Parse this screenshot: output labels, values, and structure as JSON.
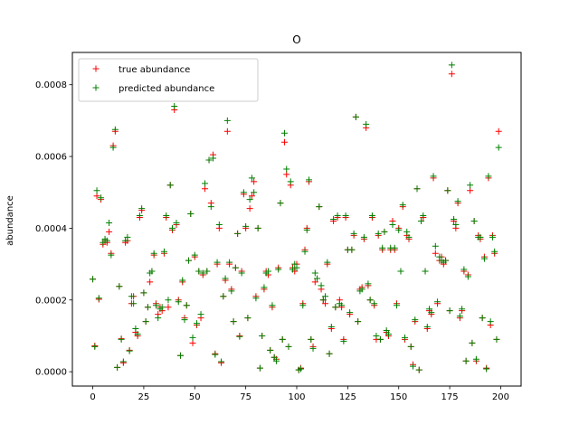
{
  "chart_data": {
    "type": "scatter",
    "title": "O",
    "xlabel": "",
    "ylabel": "abundance",
    "xlim": [
      -10,
      210
    ],
    "ylim": [
      -4e-05,
      0.00089
    ],
    "xticks": [
      0,
      25,
      50,
      75,
      100,
      125,
      150,
      175,
      200
    ],
    "xtick_labels": [
      "0",
      "25",
      "50",
      "75",
      "100",
      "125",
      "150",
      "175",
      "200"
    ],
    "yticks": [
      0.0,
      0.0002,
      0.0004,
      0.0006,
      0.0008
    ],
    "ytick_labels": [
      "0.0000",
      "0.0002",
      "0.0004",
      "0.0006",
      "0.0008"
    ],
    "grid": false,
    "legend_position": "top-left",
    "marker": "+",
    "series": [
      {
        "name": "true abundance",
        "color": "#ff0000",
        "x": [
          0,
          1,
          2,
          3,
          4,
          5,
          6,
          7,
          8,
          9,
          10,
          11,
          12,
          13,
          14,
          15,
          16,
          17,
          18,
          19,
          20,
          21,
          22,
          23,
          24,
          25,
          26,
          27,
          28,
          29,
          30,
          31,
          32,
          33,
          34,
          35,
          36,
          37,
          38,
          39,
          40,
          41,
          42,
          43,
          44,
          45,
          46,
          47,
          48,
          49,
          50,
          51,
          52,
          53,
          54,
          55,
          56,
          57,
          58,
          59,
          60,
          61,
          62,
          63,
          64,
          65,
          66,
          67,
          68,
          69,
          70,
          71,
          72,
          73,
          74,
          75,
          76,
          77,
          78,
          79,
          80,
          81,
          82,
          83,
          84,
          85,
          86,
          87,
          88,
          89,
          90,
          91,
          92,
          93,
          94,
          95,
          96,
          97,
          98,
          99,
          100,
          101,
          102,
          103,
          104,
          105,
          106,
          107,
          108,
          109,
          110,
          111,
          112,
          113,
          114,
          115,
          116,
          117,
          118,
          119,
          120,
          121,
          122,
          123,
          124,
          125,
          126,
          127,
          128,
          129,
          130,
          131,
          132,
          133,
          134,
          135,
          136,
          137,
          138,
          139,
          140,
          141,
          142,
          143,
          144,
          145,
          146,
          147,
          148,
          149,
          150,
          151,
          152,
          153,
          154,
          155,
          156,
          157,
          158,
          159,
          160,
          161,
          162,
          163,
          164,
          165,
          166,
          167,
          168,
          169,
          170,
          171,
          172,
          173,
          174,
          175,
          176,
          177,
          178,
          179,
          180,
          181,
          182,
          183,
          184,
          185,
          186,
          187,
          188,
          189,
          190,
          191,
          192,
          193,
          194,
          195,
          196,
          197,
          198,
          199
        ],
        "y": [
          0.000258,
          7.2e-05,
          0.00049,
          0.000202,
          0.00048,
          0.000355,
          0.000365,
          0.00036,
          0.00039,
          0.00033,
          0.00063,
          0.00067,
          1.2e-05,
          0.000238,
          9.2e-05,
          2.5e-05,
          0.00036,
          0.000365,
          6e-05,
          0.00019,
          0.00021,
          0.00011,
          0.0001,
          0.00043,
          0.00045,
          0.00022,
          0.00014,
          0.00018,
          0.00025,
          0.00028,
          0.000325,
          0.00019,
          0.00016,
          0.00018,
          0.00017,
          0.00033,
          0.00043,
          0.00018,
          0.00052,
          0.000395,
          0.00073,
          0.00041,
          0.0002,
          4.5e-05,
          0.00025,
          0.00015,
          0.000185,
          0.00031,
          0.00044,
          8e-05,
          0.00032,
          0.00013,
          0.00028,
          0.00015,
          0.00027,
          0.00051,
          0.00028,
          0.00059,
          0.00047,
          0.000605,
          5e-05,
          0.0003,
          0.0004,
          2.5e-05,
          0.00021,
          0.000255,
          0.00067,
          0.0003,
          0.00023,
          0.00014,
          0.00029,
          0.000385,
          0.0001,
          0.00028,
          0.000495,
          0.0004,
          0.00015,
          0.000455,
          0.00049,
          0.00053,
          0.00021,
          0.0004,
          1e-05,
          0.0001,
          0.00023,
          0.00028,
          0.00027,
          6e-05,
          0.00018,
          4e-05,
          3.5e-05,
          0.00029,
          0.00047,
          9e-05,
          0.00064,
          0.00055,
          7e-05,
          0.00052,
          0.00029,
          0.00028,
          0.0003,
          5e-06,
          1e-05,
          0.00019,
          0.00034,
          0.0004,
          0.00053,
          9e-05,
          7e-05,
          0.00025,
          0.00026,
          0.00046,
          0.00023,
          0.0002,
          0.00019,
          0.0003,
          5e-05,
          0.00012,
          0.00042,
          0.00018,
          0.00043,
          0.0002,
          0.00018,
          9e-05,
          0.00043,
          0.00034,
          0.00016,
          0.00034,
          0.00038,
          0.00071,
          0.00014,
          0.00023,
          0.000235,
          0.00037,
          0.00068,
          0.00024,
          0.0002,
          0.00043,
          0.000185,
          9e-05,
          0.00038,
          9e-05,
          0.00034,
          0.00039,
          0.00011,
          0.0001,
          0.00034,
          0.00042,
          0.00034,
          0.00019,
          0.0004,
          0.00028,
          0.00046,
          9e-05,
          0.00038,
          0.00037,
          7e-05,
          2e-05,
          0.00014,
          0.00051,
          5e-06,
          0.00042,
          0.00043,
          0.00028,
          0.00012,
          0.00017,
          0.00016,
          0.00054,
          0.00033,
          0.00019,
          0.00031,
          0.00032,
          0.0003,
          0.00031,
          0.000505,
          0.00017,
          0.00083,
          0.00042,
          0.0004,
          0.00047,
          0.00015,
          0.00017,
          0.00028,
          3e-05,
          0.00027,
          0.000505,
          8e-05,
          0.00042,
          3e-05,
          0.00038,
          0.00037,
          0.00015,
          0.00032,
          1e-05,
          0.00054,
          0.00013,
          0.00038,
          0.00033,
          9e-05,
          0.00067
        ]
      },
      {
        "name": "predicted abundance",
        "color": "#008000",
        "x": [
          0,
          1,
          2,
          3,
          4,
          5,
          6,
          7,
          8,
          9,
          10,
          11,
          12,
          13,
          14,
          15,
          16,
          17,
          18,
          19,
          20,
          21,
          22,
          23,
          24,
          25,
          26,
          27,
          28,
          29,
          30,
          31,
          32,
          33,
          34,
          35,
          36,
          37,
          38,
          39,
          40,
          41,
          42,
          43,
          44,
          45,
          46,
          47,
          48,
          49,
          50,
          51,
          52,
          53,
          54,
          55,
          56,
          57,
          58,
          59,
          60,
          61,
          62,
          63,
          64,
          65,
          66,
          67,
          68,
          69,
          70,
          71,
          72,
          73,
          74,
          75,
          76,
          77,
          78,
          79,
          80,
          81,
          82,
          83,
          84,
          85,
          86,
          87,
          88,
          89,
          90,
          91,
          92,
          93,
          94,
          95,
          96,
          97,
          98,
          99,
          100,
          101,
          102,
          103,
          104,
          105,
          106,
          107,
          108,
          109,
          110,
          111,
          112,
          113,
          114,
          115,
          116,
          117,
          118,
          119,
          120,
          121,
          122,
          123,
          124,
          125,
          126,
          127,
          128,
          129,
          130,
          131,
          132,
          133,
          134,
          135,
          136,
          137,
          138,
          139,
          140,
          141,
          142,
          143,
          144,
          145,
          146,
          147,
          148,
          149,
          150,
          151,
          152,
          153,
          154,
          155,
          156,
          157,
          158,
          159,
          160,
          161,
          162,
          163,
          164,
          165,
          166,
          167,
          168,
          169,
          170,
          171,
          172,
          173,
          174,
          175,
          176,
          177,
          178,
          179,
          180,
          181,
          182,
          183,
          184,
          185,
          186,
          187,
          188,
          189,
          190,
          191,
          192,
          193,
          194,
          195,
          196,
          197,
          198,
          199
        ],
        "y": [
          0.000258,
          7e-05,
          0.000505,
          0.000205,
          0.000485,
          0.00036,
          0.00037,
          0.000365,
          0.000415,
          0.000325,
          0.000625,
          0.000675,
          1.2e-05,
          0.000238,
          9e-05,
          2.8e-05,
          0.000365,
          0.000375,
          5.8e-05,
          0.00021,
          0.00019,
          0.00012,
          0.000105,
          0.000435,
          0.000455,
          0.00022,
          0.00014,
          0.00018,
          0.000275,
          0.00028,
          0.00033,
          0.000185,
          0.00015,
          0.000175,
          0.00018,
          0.000335,
          0.000435,
          0.0002,
          0.00052,
          0.0004,
          0.00074,
          0.000415,
          0.000195,
          4.5e-05,
          0.000255,
          0.000145,
          0.000185,
          0.00031,
          0.00044,
          9.5e-05,
          0.000325,
          0.000135,
          0.00028,
          0.00016,
          0.000275,
          0.000525,
          0.00028,
          0.00059,
          0.00046,
          0.000595,
          4.8e-05,
          0.000305,
          0.00041,
          2.8e-05,
          0.00021,
          0.00026,
          0.0007,
          0.000305,
          0.000225,
          0.00014,
          0.00029,
          0.000385,
          9.8e-05,
          0.000275,
          0.0005,
          0.000405,
          0.00015,
          0.00048,
          0.00054,
          0.0005,
          0.000205,
          0.0004,
          1e-05,
          0.0001,
          0.000235,
          0.000275,
          0.00028,
          6e-05,
          0.000185,
          4e-05,
          3e-05,
          0.000285,
          0.00047,
          9e-05,
          0.000665,
          0.000565,
          7e-05,
          0.00053,
          0.000285,
          0.0003,
          0.00029,
          5e-06,
          8e-06,
          0.000185,
          0.000335,
          0.000395,
          0.000535,
          9e-05,
          6.5e-05,
          0.000275,
          0.00026,
          0.00046,
          0.00024,
          0.0002,
          0.00021,
          0.000305,
          5e-05,
          0.000125,
          0.000425,
          0.00018,
          0.000435,
          0.00019,
          0.000185,
          8.5e-05,
          0.000435,
          0.00034,
          0.000165,
          0.00034,
          0.000385,
          0.00071,
          0.00014,
          0.000225,
          0.00023,
          0.000375,
          0.00069,
          0.000245,
          0.0002,
          0.000435,
          0.00019,
          0.0001,
          0.000385,
          9e-05,
          0.000345,
          0.00039,
          0.000115,
          0.000105,
          0.000345,
          0.00041,
          0.000345,
          0.000185,
          0.000395,
          0.00028,
          0.000465,
          9.5e-05,
          0.00039,
          0.000375,
          7e-05,
          1.5e-05,
          0.000145,
          0.00051,
          5e-06,
          0.00042,
          0.000435,
          0.00028,
          0.000125,
          0.000175,
          0.000165,
          0.000545,
          0.00035,
          0.000195,
          0.00032,
          0.00031,
          0.000305,
          0.00031,
          0.000505,
          0.00017,
          0.000855,
          0.000425,
          0.00041,
          0.000475,
          0.000155,
          0.000175,
          0.000285,
          3e-05,
          0.000265,
          0.00052,
          8e-05,
          0.00042,
          3.5e-05,
          0.000375,
          0.000375,
          0.00015,
          0.000315,
          8e-06,
          0.000545,
          0.00014,
          0.000375,
          0.000335,
          9e-05,
          0.000625
        ]
      }
    ]
  }
}
